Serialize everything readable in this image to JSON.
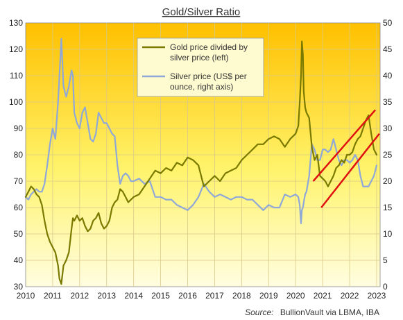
{
  "chart_data": {
    "type": "line",
    "title": "Gold/Silver Ratio",
    "source_label": "Source:",
    "source_text": "BullionVault via LBMA, IBA",
    "x_ticks": [
      "2010",
      "2011",
      "2012",
      "2013",
      "2014",
      "2015",
      "2016",
      "2017",
      "2018",
      "2019",
      "2020",
      "2021",
      "2022",
      "2023"
    ],
    "x_range": [
      2010,
      2023.1
    ],
    "y_left": {
      "range": [
        30,
        130
      ],
      "ticks": [
        "30",
        "40",
        "50",
        "60",
        "70",
        "80",
        "90",
        "100",
        "110",
        "120",
        "130"
      ]
    },
    "y_right": {
      "range": [
        0,
        50
      ],
      "ticks": [
        "0",
        "5",
        "10",
        "15",
        "20",
        "25",
        "30",
        "35",
        "40",
        "45",
        "50"
      ]
    },
    "legend": {
      "gold_ratio_line1": "Gold price divided by",
      "gold_ratio_line2": "silver price (left)",
      "silver_line1": "Silver price (US$ per",
      "silver_line2": "ounce, right axis)"
    },
    "colors": {
      "gold_ratio": "#7a7a00",
      "silver": "#8fa8d8",
      "trend_channel": "#e01010",
      "background_top": "#ffc000",
      "background_bottom": "#fffde0"
    },
    "series": [
      {
        "name": "Gold price divided by silver price (left)",
        "axis": "left",
        "x": [
          2010.0,
          2010.1,
          2010.2,
          2010.3,
          2010.4,
          2010.5,
          2010.6,
          2010.7,
          2010.8,
          2010.9,
          2011.0,
          2011.1,
          2011.2,
          2011.25,
          2011.32,
          2011.4,
          2011.5,
          2011.6,
          2011.7,
          2011.75,
          2011.8,
          2011.9,
          2012.0,
          2012.1,
          2012.2,
          2012.3,
          2012.4,
          2012.5,
          2012.6,
          2012.7,
          2012.8,
          2012.9,
          2013.0,
          2013.1,
          2013.2,
          2013.3,
          2013.4,
          2013.5,
          2013.6,
          2013.7,
          2013.8,
          2013.9,
          2014.0,
          2014.2,
          2014.4,
          2014.6,
          2014.8,
          2015.0,
          2015.2,
          2015.4,
          2015.6,
          2015.8,
          2016.0,
          2016.2,
          2016.4,
          2016.6,
          2016.8,
          2017.0,
          2017.2,
          2017.4,
          2017.6,
          2017.8,
          2018.0,
          2018.2,
          2018.4,
          2018.6,
          2018.8,
          2019.0,
          2019.2,
          2019.4,
          2019.6,
          2019.8,
          2020.0,
          2020.1,
          2020.15,
          2020.2,
          2020.23,
          2020.27,
          2020.3,
          2020.35,
          2020.4,
          2020.5,
          2020.6,
          2020.7,
          2020.8,
          2020.9,
          2021.0,
          2021.1,
          2021.2,
          2021.3,
          2021.4,
          2021.5,
          2021.6,
          2021.7,
          2021.8,
          2021.9,
          2022.0,
          2022.1,
          2022.2,
          2022.3,
          2022.4,
          2022.5,
          2022.6,
          2022.7,
          2022.8,
          2022.9,
          2023.0
        ],
        "values": [
          64,
          66,
          68,
          67,
          65,
          64,
          61,
          55,
          50,
          47,
          45,
          43,
          38,
          33,
          31,
          38,
          40,
          43,
          52,
          56,
          55,
          57,
          55,
          56,
          53,
          51,
          52,
          55,
          56,
          58,
          54,
          52,
          53,
          55,
          60,
          62,
          63,
          67,
          66,
          64,
          62,
          63,
          64,
          65,
          68,
          71,
          74,
          73,
          75,
          74,
          77,
          76,
          79,
          78,
          76,
          68,
          70,
          72,
          70,
          73,
          74,
          75,
          78,
          80,
          82,
          84,
          84,
          86,
          87,
          86,
          83,
          86,
          88,
          91,
          100,
          110,
          123,
          118,
          104,
          98,
          96,
          94,
          83,
          78,
          80,
          72,
          71,
          70,
          68,
          70,
          72,
          75,
          76,
          78,
          77,
          80,
          80,
          81,
          84,
          86,
          87,
          90,
          93,
          95,
          88,
          82,
          80
        ]
      },
      {
        "name": "Silver price (US$ per ounce, right axis)",
        "axis": "right",
        "x": [
          2010.0,
          2010.1,
          2010.2,
          2010.3,
          2010.4,
          2010.5,
          2010.6,
          2010.7,
          2010.8,
          2010.9,
          2011.0,
          2011.1,
          2011.2,
          2011.25,
          2011.32,
          2011.4,
          2011.5,
          2011.6,
          2011.7,
          2011.75,
          2011.8,
          2011.9,
          2012.0,
          2012.1,
          2012.2,
          2012.3,
          2012.4,
          2012.5,
          2012.6,
          2012.7,
          2012.8,
          2012.9,
          2013.0,
          2013.1,
          2013.2,
          2013.3,
          2013.4,
          2013.5,
          2013.6,
          2013.7,
          2013.8,
          2013.9,
          2014.0,
          2014.2,
          2014.4,
          2014.6,
          2014.8,
          2015.0,
          2015.2,
          2015.4,
          2015.6,
          2015.8,
          2016.0,
          2016.2,
          2016.4,
          2016.6,
          2016.8,
          2017.0,
          2017.2,
          2017.4,
          2017.6,
          2017.8,
          2018.0,
          2018.2,
          2018.4,
          2018.6,
          2018.8,
          2019.0,
          2019.2,
          2019.4,
          2019.6,
          2019.8,
          2020.0,
          2020.1,
          2020.15,
          2020.2,
          2020.23,
          2020.27,
          2020.3,
          2020.35,
          2020.4,
          2020.5,
          2020.6,
          2020.7,
          2020.8,
          2020.9,
          2021.0,
          2021.1,
          2021.2,
          2021.3,
          2021.4,
          2021.5,
          2021.6,
          2021.7,
          2021.8,
          2021.9,
          2022.0,
          2022.1,
          2022.2,
          2022.3,
          2022.4,
          2022.5,
          2022.6,
          2022.7,
          2022.8,
          2022.9,
          2023.0
        ],
        "values": [
          17,
          16.5,
          17.5,
          18,
          18.5,
          18,
          18,
          19.5,
          23,
          27,
          30,
          28,
          35,
          40,
          47,
          38,
          36,
          38,
          41,
          40,
          33,
          31,
          30,
          33,
          34,
          31,
          28,
          27.5,
          29,
          33,
          32,
          31,
          31,
          30,
          29,
          28.5,
          23,
          19.5,
          21,
          21.5,
          21,
          20,
          20,
          20.5,
          19.5,
          20,
          17,
          17,
          16.5,
          16.5,
          15.5,
          15,
          14.5,
          15.5,
          17,
          19.5,
          18,
          17,
          17.5,
          17,
          16.5,
          17,
          17,
          16.5,
          16.5,
          15.5,
          14.5,
          15.5,
          15,
          15,
          17.5,
          17,
          17.5,
          17,
          15.5,
          12,
          14.5,
          15,
          16,
          17.5,
          18,
          21,
          27,
          26,
          24,
          24,
          26,
          26,
          25.5,
          26,
          28,
          26,
          24,
          23,
          24,
          24,
          23.5,
          24,
          25,
          24,
          21,
          19,
          19,
          19,
          20,
          21,
          23
        ]
      }
    ],
    "trend_lines": [
      {
        "x": [
          2020.65,
          2022.95
        ],
        "y": [
          70,
          97
        ]
      },
      {
        "x": [
          2020.95,
          2023.1
        ],
        "y": [
          60,
          88
        ]
      }
    ]
  }
}
